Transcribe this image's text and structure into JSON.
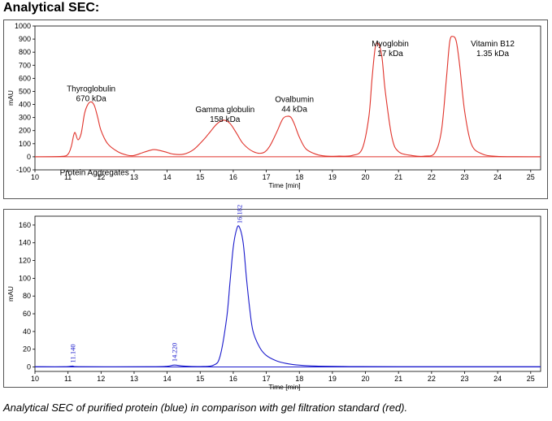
{
  "heading": "Analytical SEC:",
  "caption": "Analytical SEC of purified protein (blue) in comparison with gel filtration standard (red).",
  "chart_data": [
    {
      "type": "line",
      "xlabel": "Time [min]",
      "ylabel": "mAU",
      "xlim": [
        10,
        25.3
      ],
      "ylim": [
        -100,
        1000
      ],
      "xticks": [
        10,
        11,
        12,
        13,
        14,
        15,
        16,
        17,
        18,
        19,
        20,
        21,
        22,
        23,
        24,
        25
      ],
      "yticks": [
        -100,
        0,
        100,
        200,
        300,
        400,
        500,
        600,
        700,
        800,
        900,
        1000
      ],
      "color": "#e0332b",
      "series": [
        {
          "x": [
            10.0,
            10.8,
            11.0,
            11.1,
            11.2,
            11.3,
            11.4,
            11.5,
            11.6,
            11.7,
            11.8,
            11.9,
            12.0,
            12.2,
            12.5,
            12.8,
            13.0,
            13.3,
            13.6,
            13.9,
            14.2,
            14.5,
            14.8,
            15.1,
            15.3,
            15.5,
            15.7,
            15.9,
            16.1,
            16.3,
            16.6,
            16.9,
            17.1,
            17.3,
            17.5,
            17.65,
            17.75,
            17.85,
            18.0,
            18.2,
            18.5,
            18.8,
            19.2,
            19.6,
            19.9,
            20.1,
            20.2,
            20.3,
            20.4,
            20.5,
            20.6,
            20.8,
            21.0,
            21.4,
            21.8,
            22.1,
            22.3,
            22.45,
            22.55,
            22.65,
            22.75,
            22.85,
            23.0,
            23.2,
            23.5,
            24.0,
            25.3
          ],
          "y": [
            0,
            3,
            20,
            80,
            185,
            130,
            180,
            330,
            400,
            420,
            390,
            300,
            200,
            100,
            40,
            12,
            10,
            35,
            55,
            40,
            20,
            20,
            55,
            130,
            190,
            250,
            280,
            255,
            180,
            100,
            40,
            30,
            80,
            180,
            290,
            310,
            300,
            250,
            150,
            60,
            20,
            5,
            5,
            10,
            60,
            300,
            600,
            840,
            860,
            760,
            500,
            150,
            40,
            10,
            5,
            30,
            200,
            600,
            880,
            920,
            880,
            700,
            350,
            100,
            25,
            3,
            0
          ]
        }
      ],
      "annotations": [
        {
          "text": [
            "Thyroglobulin",
            "670 kDa"
          ],
          "x": 11.7,
          "y": 500
        },
        {
          "text": [
            "Gamma globulin",
            "158 kDa"
          ],
          "x": 15.75,
          "y": 340
        },
        {
          "text": [
            "Ovalbumin",
            "44 kDa"
          ],
          "x": 17.85,
          "y": 420
        },
        {
          "text": [
            "Myoglobin",
            "17 kDa"
          ],
          "x": 20.75,
          "y": 845
        },
        {
          "text": [
            "Vitamin B12",
            "1.35 kDa"
          ],
          "x": 23.85,
          "y": 845
        },
        {
          "text": [
            "Protein Aggregates"
          ],
          "x": 11.8,
          "y": -140
        }
      ]
    },
    {
      "type": "line",
      "xlabel": "Time [min]",
      "ylabel": "mAU",
      "xlim": [
        10,
        25.3
      ],
      "ylim": [
        -5,
        170
      ],
      "xticks": [
        10,
        11,
        12,
        13,
        14,
        15,
        16,
        17,
        18,
        19,
        20,
        21,
        22,
        23,
        24,
        25
      ],
      "yticks": [
        0,
        20,
        40,
        60,
        80,
        100,
        120,
        140,
        160
      ],
      "color": "#1a1acc",
      "series": [
        {
          "x": [
            10.0,
            10.9,
            11.14,
            11.4,
            13.5,
            14.0,
            14.22,
            14.5,
            15.0,
            15.4,
            15.6,
            15.8,
            15.9,
            16.0,
            16.1,
            16.182,
            16.3,
            16.4,
            16.5,
            16.6,
            16.8,
            17.0,
            17.3,
            17.6,
            18.0,
            18.5,
            19.5,
            21.0,
            25.3
          ],
          "y": [
            0.3,
            0.3,
            1.0,
            0.3,
            0.3,
            0.8,
            2.2,
            1.0,
            0.5,
            2.0,
            12.0,
            55.0,
            95.0,
            135.0,
            155.0,
            158.0,
            140.0,
            100.0,
            65.0,
            40.0,
            22.0,
            13.0,
            7.0,
            4.0,
            2.0,
            1.0,
            0.5,
            0.3,
            0.3
          ]
        }
      ],
      "peak_labels": [
        {
          "text": "11.140",
          "x": 11.14,
          "y": 1.0
        },
        {
          "text": "14.220",
          "x": 14.22,
          "y": 2.2
        },
        {
          "text": "16.182",
          "x": 16.182,
          "y": 158.0
        }
      ]
    }
  ]
}
